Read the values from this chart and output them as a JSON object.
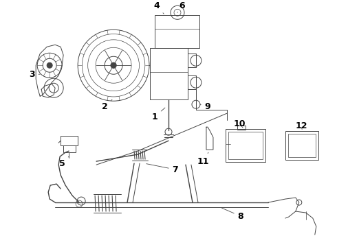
{
  "bg_color": "#ffffff",
  "line_color": "#444444",
  "label_color": "#000000",
  "label_fontsize": 9,
  "label_fontweight": "bold",
  "figsize": [
    4.9,
    3.6
  ],
  "dpi": 100
}
